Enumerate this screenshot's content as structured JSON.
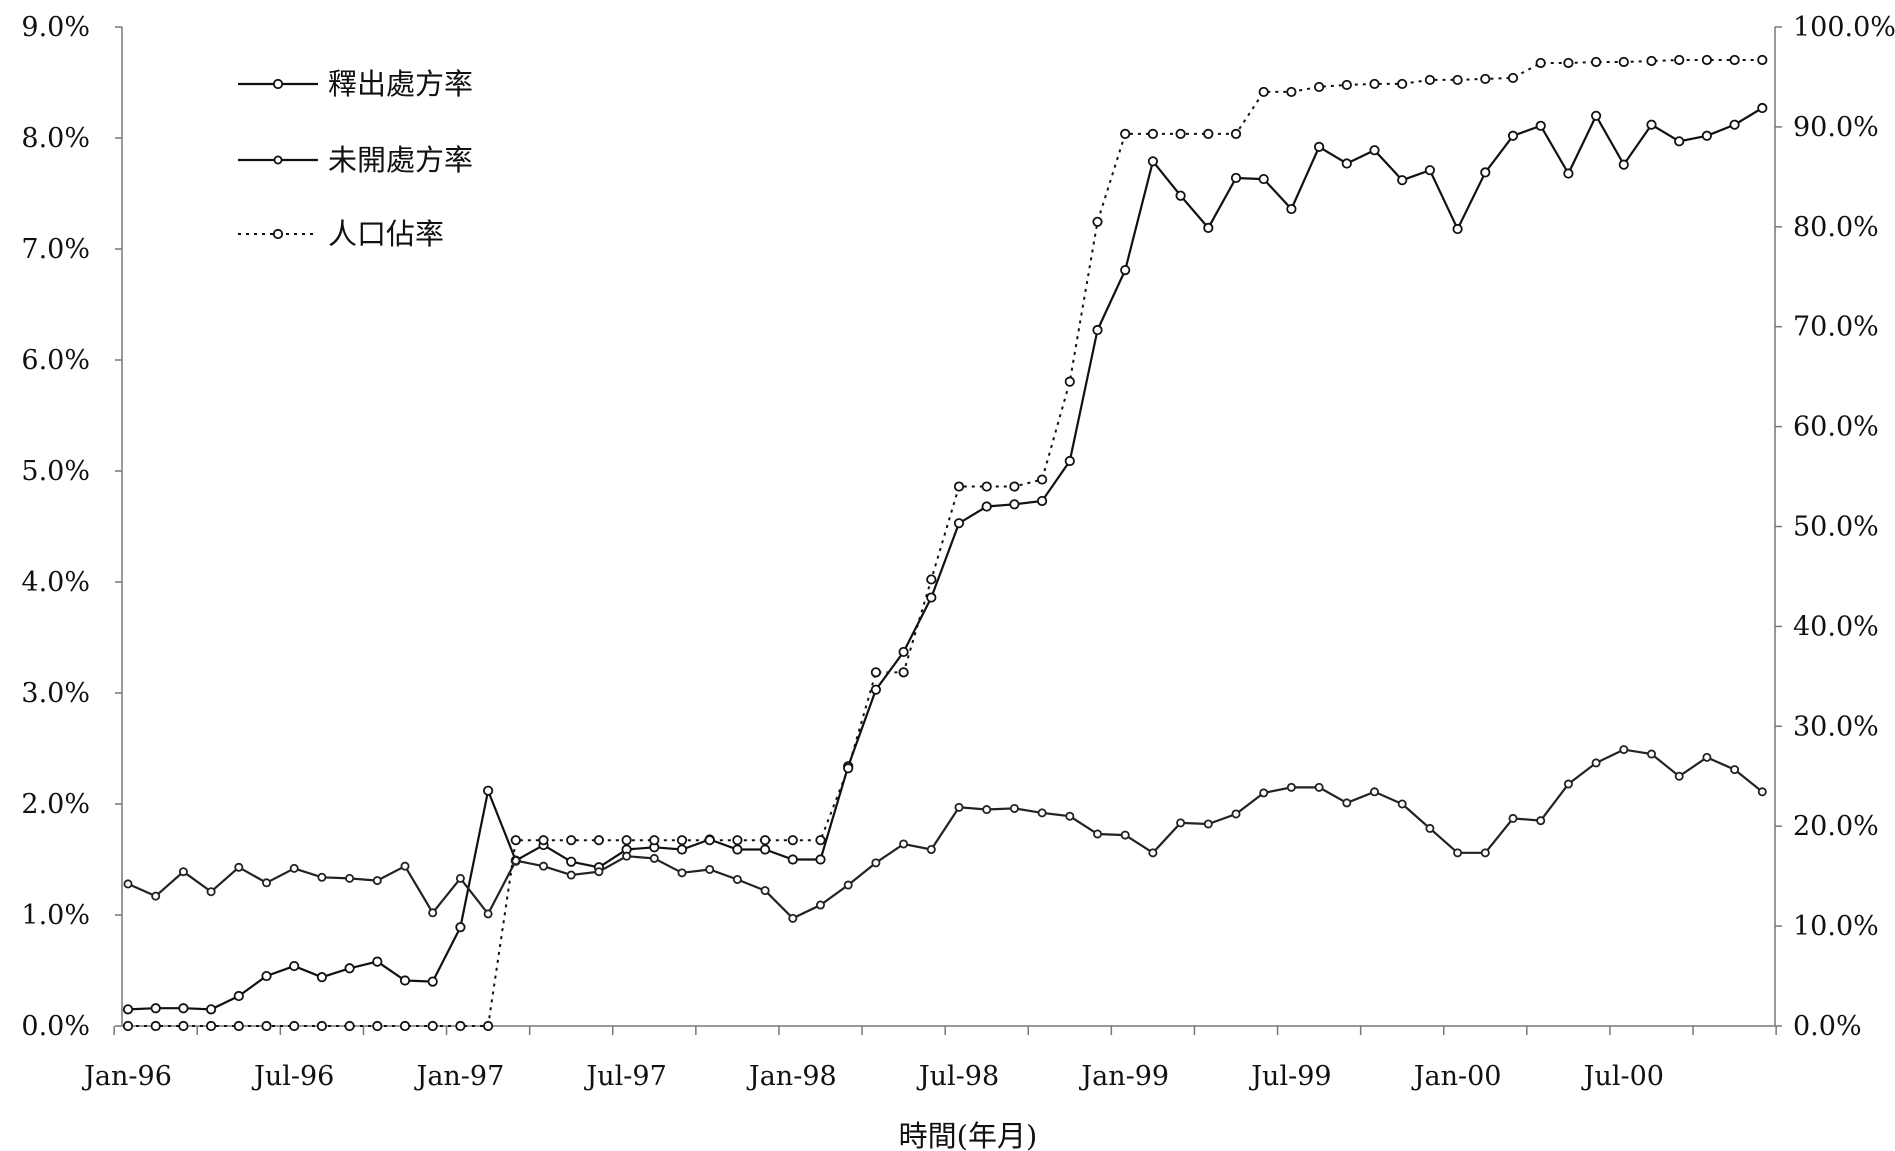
{
  "chart_data": {
    "type": "line",
    "title": "",
    "xlabel": "時間(年月)",
    "ylabel": "",
    "x_tick_labels": [
      "Jan-96",
      "Jul-96",
      "Jan-97",
      "Jul-97",
      "Jan-98",
      "Jul-98",
      "Jan-99",
      "Jul-99",
      "Jan-00",
      "Jul-00"
    ],
    "y_left": {
      "ylim": [
        0,
        9
      ],
      "ticks": [
        "0.0%",
        "1.0%",
        "2.0%",
        "3.0%",
        "4.0%",
        "5.0%",
        "6.0%",
        "7.0%",
        "8.0%",
        "9.0%"
      ]
    },
    "y_right": {
      "ylim": [
        0,
        100
      ],
      "ticks": [
        "0.0%",
        "10.0%",
        "20.0%",
        "30.0%",
        "40.0%",
        "50.0%",
        "60.0%",
        "70.0%",
        "80.0%",
        "90.0%",
        "100.0%"
      ]
    },
    "x": [
      "1996-01",
      "1996-02",
      "1996-03",
      "1996-04",
      "1996-05",
      "1996-06",
      "1996-07",
      "1996-08",
      "1996-09",
      "1996-10",
      "1996-11",
      "1996-12",
      "1997-01",
      "1997-02",
      "1997-03",
      "1997-04",
      "1997-05",
      "1997-06",
      "1997-07",
      "1997-08",
      "1997-09",
      "1997-10",
      "1997-11",
      "1997-12",
      "1998-01",
      "1998-02",
      "1998-03",
      "1998-04",
      "1998-05",
      "1998-06",
      "1998-07",
      "1998-08",
      "1998-09",
      "1998-10",
      "1998-11",
      "1998-12",
      "1999-01",
      "1999-02",
      "1999-03",
      "1999-04",
      "1999-05",
      "1999-06",
      "1999-07",
      "1999-08",
      "1999-09",
      "1999-10",
      "1999-11",
      "1999-12",
      "2000-01",
      "2000-02",
      "2000-03",
      "2000-04",
      "2000-05",
      "2000-06",
      "2000-07",
      "2000-08",
      "2000-09",
      "2000-10",
      "2000-11",
      "2000-12"
    ],
    "legend_position": "top-left",
    "grid": false,
    "series": [
      {
        "name": "釋出處方率",
        "axis": "left",
        "style": "solid",
        "values": [
          0.15,
          0.16,
          0.16,
          0.15,
          0.27,
          0.45,
          0.54,
          0.44,
          0.52,
          0.58,
          0.41,
          0.4,
          0.89,
          2.12,
          1.49,
          1.63,
          1.48,
          1.43,
          1.59,
          1.61,
          1.59,
          1.68,
          1.59,
          1.59,
          1.5,
          1.5,
          2.34,
          3.03,
          3.37,
          3.86,
          4.53,
          4.68,
          4.7,
          4.73,
          5.09,
          6.27,
          6.81,
          7.79,
          7.48,
          7.19,
          7.64,
          7.63,
          7.36,
          7.92,
          7.77,
          7.89,
          7.62,
          7.71,
          7.18,
          7.69,
          8.02,
          8.11,
          7.68,
          8.2,
          7.76,
          8.12,
          7.97,
          8.02,
          8.12,
          8.27
        ]
      },
      {
        "name": "未開處方率",
        "axis": "left",
        "style": "solid",
        "values": [
          1.28,
          1.17,
          1.39,
          1.21,
          1.43,
          1.29,
          1.42,
          1.34,
          1.33,
          1.31,
          1.44,
          1.02,
          1.33,
          1.01,
          1.49,
          1.44,
          1.36,
          1.39,
          1.53,
          1.51,
          1.38,
          1.41,
          1.32,
          1.22,
          0.97,
          1.09,
          1.27,
          1.47,
          1.64,
          1.59,
          1.97,
          1.95,
          1.96,
          1.92,
          1.89,
          1.73,
          1.72,
          1.56,
          1.83,
          1.82,
          1.91,
          2.1,
          2.15,
          2.15,
          2.01,
          2.11,
          2.0,
          1.78,
          1.56,
          1.56,
          1.87,
          1.85,
          2.18,
          2.37,
          2.49,
          2.45,
          2.25,
          2.42,
          2.31,
          2.11
        ]
      },
      {
        "name": "人口佔率",
        "axis": "right",
        "style": "dotted",
        "values": [
          0,
          0,
          0,
          0,
          0,
          0,
          0,
          0,
          0,
          0,
          0,
          0,
          0,
          0,
          18.6,
          18.6,
          18.6,
          18.6,
          18.6,
          18.6,
          18.6,
          18.6,
          18.6,
          18.6,
          18.6,
          18.6,
          25.8,
          35.4,
          35.4,
          44.7,
          54.0,
          54.0,
          54.0,
          54.7,
          64.5,
          80.5,
          89.3,
          89.3,
          89.3,
          89.3,
          89.3,
          93.5,
          93.5,
          94.0,
          94.2,
          94.3,
          94.3,
          94.7,
          94.7,
          94.8,
          94.9,
          96.4,
          96.4,
          96.5,
          96.5,
          96.6,
          96.7,
          96.7,
          96.7,
          96.7
        ]
      }
    ]
  }
}
